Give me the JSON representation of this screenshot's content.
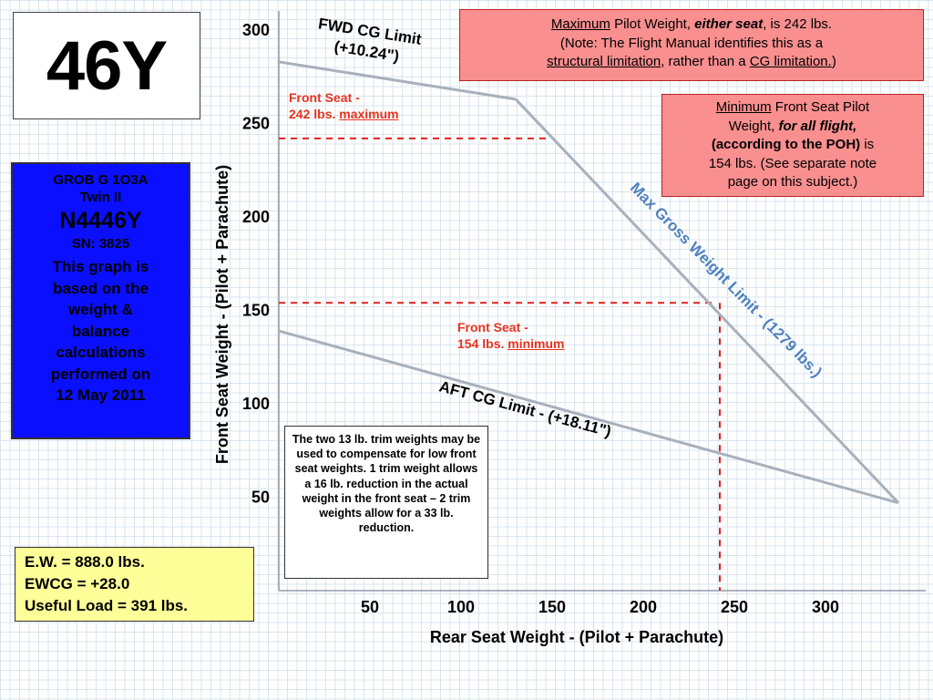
{
  "title": "46Y",
  "aircraft": {
    "model": "GROB G 1O3A",
    "variant": "Twin II",
    "registration": "N4446Y",
    "serial": "SN: 3825",
    "note": [
      "This graph is",
      "based on the",
      "weight &",
      "balance",
      "calculations",
      "performed on",
      "12 May 2011"
    ]
  },
  "stats": [
    "E.W. = 888.0 lbs.",
    "EWCG = +28.0",
    "Useful Load = 391 lbs."
  ],
  "note_max": {
    "w1": "Maximum",
    "w2": " Pilot Weight, ",
    "w3": "either seat",
    "w4": ", is 242 lbs.",
    "line2": "(Note: The Flight Manual identifies this as a",
    "w5": "structural limitation",
    "w6": ", rather than a ",
    "w7": "CG limitation.",
    "w8": ")"
  },
  "note_min": {
    "w1": "Minimum",
    "w2": " Front Seat Pilot",
    "w3": "Weight, ",
    "w4": "for all flight,",
    "line3": "(according to the POH)",
    "w5": " is",
    "line4": "154 lbs. (See separate note",
    "line5": "page on this subject.)"
  },
  "trim_note": "The two 13 lb. trim weights may be used to compensate for low front seat weights. 1 trim weight allows a 16 lb. reduction in the actual weight in the front seat – 2 trim weights allow for a 33 lb. reduction.",
  "labels": {
    "front_max_line1": "Front Seat -",
    "front_max_line2": "242 lbs. ",
    "front_max_word": "maximum",
    "front_min_line1": "Front Seat -",
    "front_min_line2": "154 lbs. ",
    "front_min_word": "minimum"
  },
  "colors": {
    "limit_line": "#a8b0bc",
    "reference_line": "#e02020",
    "gross_label": "#4f81bd",
    "note_fill": "#f98f8f",
    "info_fill": "#0a10ff",
    "stats_fill": "#ffff99"
  },
  "chart_data": {
    "type": "line",
    "title": "",
    "xlabel": "Rear Seat Weight - (Pilot + Parachute)",
    "ylabel": "Front Seat Weight - (Pilot + Parachute)",
    "xlim": [
      0,
      345
    ],
    "ylim": [
      0,
      305
    ],
    "x_ticks": [
      50,
      100,
      150,
      200,
      250,
      300
    ],
    "y_ticks": [
      50,
      100,
      150,
      200,
      250,
      300
    ],
    "grid": true,
    "series": [
      {
        "name": "FWD CG Limit\n(+10.24\")",
        "x": [
          0,
          130
        ],
        "y": [
          283,
          263
        ]
      },
      {
        "name": "Max Gross Weight Limit - (1279 lbs.)",
        "x": [
          130,
          340
        ],
        "y": [
          263,
          47
        ]
      },
      {
        "name": "AFT CG Limit - (+18.11\")",
        "x": [
          0,
          340
        ],
        "y": [
          139,
          47
        ]
      }
    ],
    "reference_lines": [
      {
        "name": "Front Seat - 242 lbs. maximum",
        "y": 242,
        "x_range": [
          0,
          148
        ]
      },
      {
        "name": "Front Seat - 154 lbs. minimum",
        "y": 154,
        "x_range": [
          0,
          239
        ]
      },
      {
        "name": "rear-seat-at-min",
        "x": 242,
        "y_range": [
          0,
          154
        ]
      }
    ]
  }
}
